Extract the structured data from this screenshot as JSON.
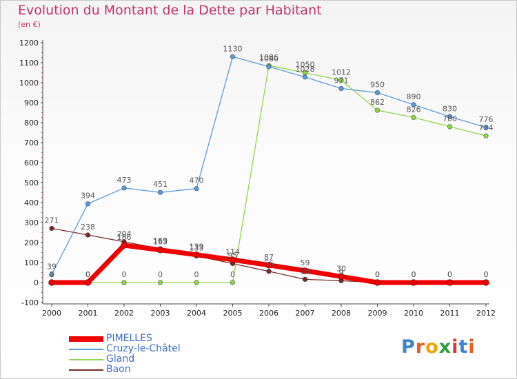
{
  "title": "Evolution du Montant de la Dette par Habitant",
  "subtitle": "(en €)",
  "logo": {
    "text": "Proxiti",
    "letters": [
      "P",
      "r",
      "o",
      "x",
      "i",
      "t",
      "i"
    ],
    "colors": [
      "#3a86d4",
      "#e8601c",
      "#f0a400",
      "#2f9e3f",
      "#d93a2f",
      "#3a86d4",
      "#e8601c"
    ]
  },
  "chart_data": {
    "type": "line",
    "x": [
      "2000",
      "2001",
      "2002",
      "2003",
      "2004",
      "2005",
      "2006",
      "2007",
      "2008",
      "2009",
      "2010",
      "2011",
      "2012"
    ],
    "ylim": [
      -100,
      1200
    ],
    "yticks": [
      -100,
      0,
      100,
      200,
      300,
      400,
      500,
      600,
      700,
      800,
      900,
      1000,
      1100,
      1200
    ],
    "grid": false,
    "legend": "bottom-left",
    "series": [
      {
        "name": "Baon",
        "color": "#7a2a2a",
        "values": [
          271,
          238,
          204,
          169,
          133,
          95,
          56,
          16,
          9,
          0,
          0,
          0,
          0
        ],
        "labels": [
          "271",
          "238",
          "204",
          "169",
          "133",
          "95",
          "56",
          "16",
          "9",
          "0",
          "0",
          "0",
          "0"
        ]
      },
      {
        "name": "Gland",
        "color": "#8fd64a",
        "values": [
          0,
          0,
          0,
          0,
          0,
          0,
          1086,
          1050,
          1012,
          862,
          826,
          780,
          734
        ],
        "labels": [
          "0",
          "0",
          "0",
          "0",
          "0",
          "0",
          "1086",
          "1050",
          "1012",
          "862",
          "826",
          "780",
          "734"
        ]
      },
      {
        "name": "Cruzy-le-Châtel",
        "color": "#5b9bd5",
        "values": [
          39,
          394,
          473,
          451,
          470,
          1130,
          1080,
          1028,
          971,
          950,
          890,
          830,
          776
        ],
        "labels": [
          "39",
          "394",
          "473",
          "451",
          "470",
          "1130",
          "1080",
          "1028",
          "971",
          "950",
          "890",
          "830",
          "776"
        ]
      },
      {
        "name": "PIMELLES",
        "color": "#ee0000",
        "values": [
          0,
          0,
          186,
          163,
          139,
          114,
          87,
          59,
          30,
          0,
          0,
          0,
          0
        ],
        "labels": [
          "0",
          "0",
          "186",
          "163",
          "139",
          "114",
          "87",
          "59",
          "30",
          "0",
          "0",
          "0",
          "0"
        ]
      }
    ]
  }
}
